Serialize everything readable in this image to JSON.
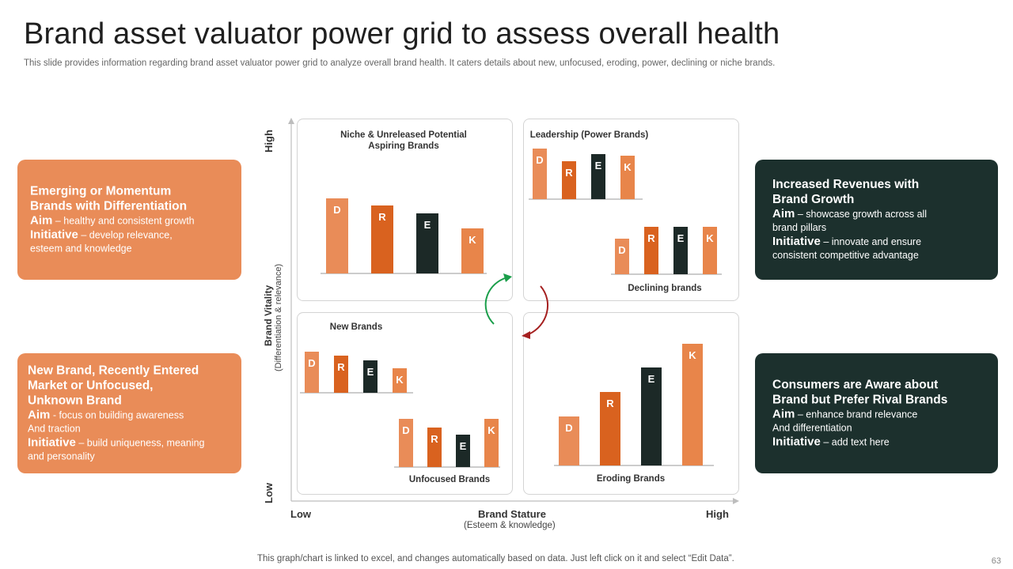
{
  "title": "Brand asset valuator power grid to assess overall health",
  "subtitle": "This slide provides information regarding brand asset valuator power grid to analyze overall brand health. It caters details about new, unfocused, eroding, power, declining or niche brands.",
  "cards": {
    "top_left": {
      "heading": [
        "Emerging or Momentum",
        "Brands with Differentiation"
      ],
      "aim_key": "Aim",
      "aim_text": " – healthy and consistent growth",
      "initiative_key": "Initiative",
      "initiative_text": [
        " – develop relevance,",
        "esteem and knowledge"
      ]
    },
    "bottom_left": {
      "heading": [
        "New Brand, Recently Entered",
        "Market or Unfocused,",
        "Unknown Brand"
      ],
      "aim_key": "Aim",
      "aim_text": [
        " - focus on building awareness",
        "And traction"
      ],
      "initiative_key": "Initiative",
      "initiative_text": [
        " – build uniqueness, meaning",
        "and personality"
      ]
    },
    "top_right": {
      "heading": [
        "Increased Revenues with",
        "Brand Growth"
      ],
      "aim_key": "Aim",
      "aim_text": [
        " – showcase growth across all",
        "brand pillars"
      ],
      "initiative_key": "Initiative",
      "initiative_text": [
        " – innovate and ensure",
        "consistent competitive advantage"
      ]
    },
    "bottom_right": {
      "heading": [
        "Consumers are Aware about",
        "Brand but Prefer Rival Brands"
      ],
      "aim_key": "Aim",
      "aim_text": [
        " – enhance brand relevance",
        " And differentiation"
      ],
      "initiative_key": "Initiative",
      "initiative_text": " – add text here"
    }
  },
  "axes": {
    "y_title": "Brand Vitality",
    "y_sub": "(Differentiation & relevance)",
    "y_high": "High",
    "y_low": "Low",
    "x_title": "Brand Stature",
    "x_sub": "(Esteem & knowledge)",
    "x_low": "Low",
    "x_high": "High"
  },
  "quadrant_labels": {
    "niche": [
      "Niche & Unreleased Potential",
      "Aspiring Brands"
    ],
    "leadership": "Leadership (Power Brands)",
    "declining": "Declining brands",
    "new": "New Brands",
    "unfocused": "Unfocused Brands",
    "eroding": "Eroding Brands"
  },
  "colors": {
    "D": "#e98c58",
    "R": "#d9621f",
    "E": "#1c2927",
    "K": "#e8854a",
    "arrow_up": "#1a9e4a",
    "arrow_down": "#a52020"
  },
  "chart_data": [
    {
      "id": "niche",
      "type": "bar",
      "title": "Niche & Unreleased Potential Aspiring Brands",
      "categories": [
        "D",
        "R",
        "E",
        "K"
      ],
      "values": [
        95,
        86,
        76,
        57
      ],
      "ylim": [
        0,
        100
      ]
    },
    {
      "id": "leadership",
      "type": "bar",
      "title": "Leadership (Power Brands)",
      "categories": [
        "D",
        "R",
        "E",
        "K"
      ],
      "values": [
        64,
        48,
        57,
        55
      ],
      "ylim": [
        0,
        100
      ]
    },
    {
      "id": "declining",
      "type": "bar",
      "title": "Declining brands",
      "categories": [
        "D",
        "R",
        "E",
        "K"
      ],
      "values": [
        45,
        60,
        60,
        60
      ],
      "ylim": [
        0,
        100
      ]
    },
    {
      "id": "new",
      "type": "bar",
      "title": "New Brands",
      "categories": [
        "D",
        "R",
        "E",
        "K"
      ],
      "values": [
        52,
        47,
        41,
        31
      ],
      "ylim": [
        0,
        100
      ]
    },
    {
      "id": "unfocused",
      "type": "bar",
      "title": "Unfocused Brands",
      "categories": [
        "D",
        "R",
        "E",
        "K"
      ],
      "values": [
        61,
        50,
        41,
        61
      ],
      "ylim": [
        0,
        100
      ]
    },
    {
      "id": "eroding",
      "type": "bar",
      "title": "Eroding Brands",
      "categories": [
        "D",
        "R",
        "E",
        "K"
      ],
      "values": [
        62,
        93,
        124,
        154
      ],
      "ylim": [
        0,
        160
      ]
    }
  ],
  "footer": "This graph/chart is linked to excel,  and changes automatically based on data. Just left click on it and select “Edit Data”.",
  "page_number": "63"
}
